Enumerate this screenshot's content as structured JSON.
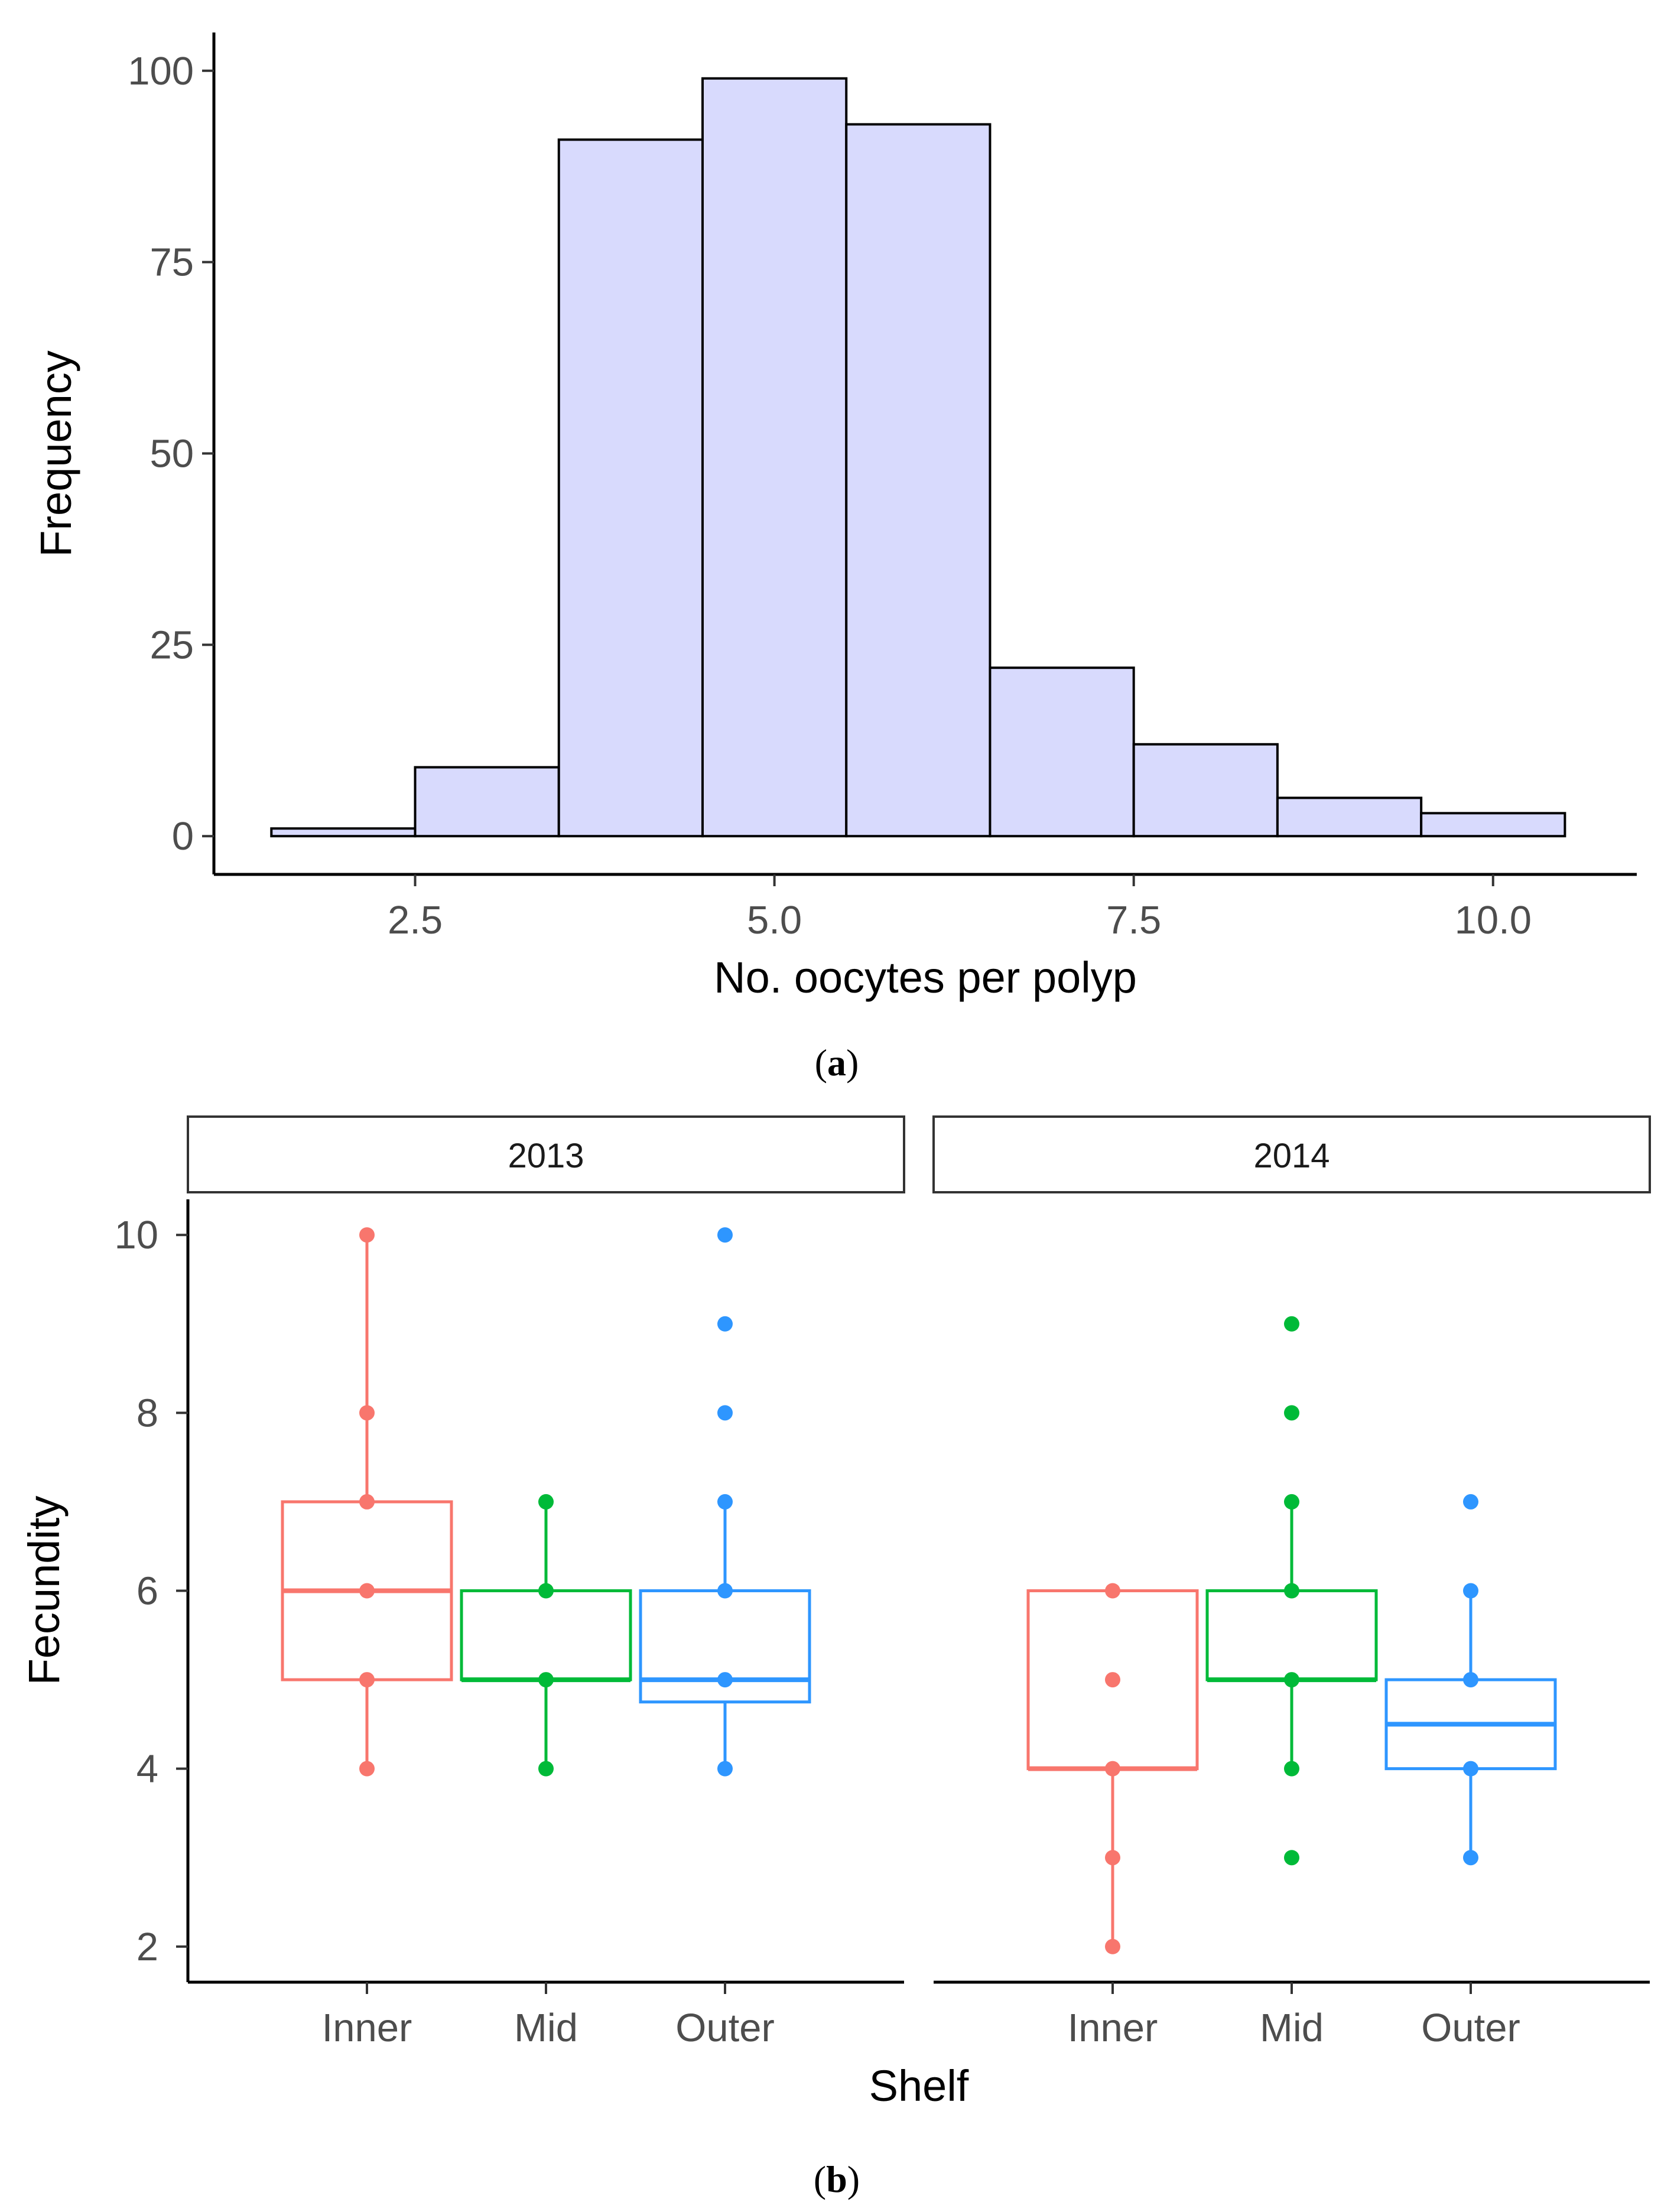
{
  "chart_data": [
    {
      "type": "bar",
      "subtype": "histogram",
      "panel_label": {
        "open": "(",
        "letter": "a",
        "close": ")"
      },
      "bins": [
        {
          "center": 2,
          "count": 1
        },
        {
          "center": 3,
          "count": 9
        },
        {
          "center": 4,
          "count": 91
        },
        {
          "center": 5,
          "count": 99
        },
        {
          "center": 6,
          "count": 93
        },
        {
          "center": 7,
          "count": 22
        },
        {
          "center": 8,
          "count": 12
        },
        {
          "center": 9,
          "count": 5
        },
        {
          "center": 10,
          "count": 3
        }
      ],
      "bin_width": 1,
      "fill_color": "#d8dafd",
      "edge_color": "#000000",
      "xlabel": "No. oocytes per polyp",
      "ylabel": "Frequency",
      "xlim": [
        1.1,
        11.0
      ],
      "ylim": [
        -5,
        105
      ],
      "x_ticks": [
        {
          "value": 2.5,
          "label": "2.5"
        },
        {
          "value": 5.0,
          "label": "5.0"
        },
        {
          "value": 7.5,
          "label": "7.5"
        },
        {
          "value": 10.0,
          "label": "10.0"
        }
      ],
      "y_ticks": [
        {
          "value": 0,
          "label": "0"
        },
        {
          "value": 25,
          "label": "25"
        },
        {
          "value": 50,
          "label": "50"
        },
        {
          "value": 75,
          "label": "75"
        },
        {
          "value": 100,
          "label": "100"
        }
      ],
      "grid": false
    },
    {
      "type": "boxplot",
      "panel_label": {
        "open": "(",
        "letter": "b",
        "close": ")"
      },
      "xlabel": "Shelf",
      "ylabel": "Fecundity",
      "categories": [
        "Inner",
        "Mid",
        "Outer"
      ],
      "ylim": [
        1.6,
        10.4
      ],
      "y_ticks": [
        {
          "value": 2,
          "label": "2"
        },
        {
          "value": 4,
          "label": "4"
        },
        {
          "value": 6,
          "label": "6"
        },
        {
          "value": 8,
          "label": "8"
        },
        {
          "value": 10,
          "label": "10"
        }
      ],
      "colors": {
        "Inner": "#f8766d",
        "Mid": "#00ba38",
        "Outer": "#2e96ff"
      },
      "grid": false,
      "facets": [
        {
          "label": "2013",
          "boxes": [
            {
              "category": "Inner",
              "q1": 5,
              "median": 6,
              "q3": 7,
              "whisker_low": 4,
              "whisker_high": 10,
              "points": [
                4,
                5,
                6,
                7,
                8,
                10
              ]
            },
            {
              "category": "Mid",
              "q1": 5,
              "median": 5,
              "q3": 6,
              "whisker_low": 4,
              "whisker_high": 7,
              "points": [
                4,
                5,
                6,
                7
              ]
            },
            {
              "category": "Outer",
              "q1": 4.75,
              "median": 5,
              "q3": 6,
              "whisker_low": 4,
              "whisker_high": 7,
              "points": [
                4,
                5,
                6,
                7,
                8,
                9,
                10
              ]
            }
          ]
        },
        {
          "label": "2014",
          "boxes": [
            {
              "category": "Inner",
              "q1": 4,
              "median": 4,
              "q3": 6,
              "whisker_low": 2,
              "whisker_high": 6,
              "points": [
                2,
                3,
                4,
                5,
                6
              ]
            },
            {
              "category": "Mid",
              "q1": 5,
              "median": 5,
              "q3": 6,
              "whisker_low": 4,
              "whisker_high": 7,
              "points": [
                3,
                4,
                5,
                6,
                7,
                8,
                9
              ]
            },
            {
              "category": "Outer",
              "q1": 4,
              "median": 4.5,
              "q3": 5,
              "whisker_low": 3,
              "whisker_high": 6,
              "points": [
                3,
                4,
                5,
                6,
                7
              ]
            }
          ]
        }
      ]
    }
  ]
}
